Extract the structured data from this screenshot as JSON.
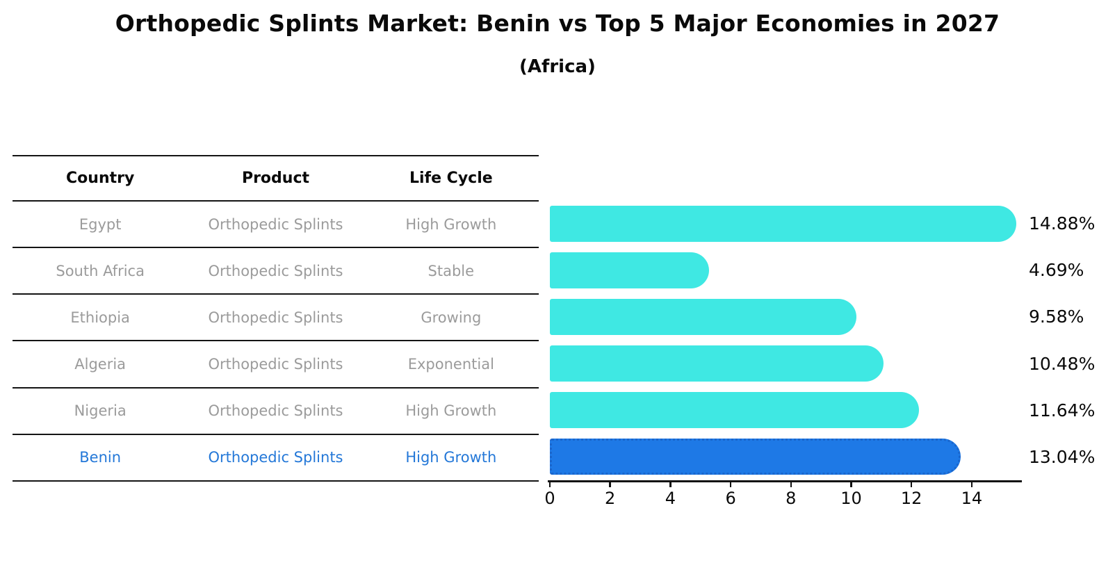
{
  "title": "Orthopedic Splints Market: Benin vs Top 5 Major Economies in 2027",
  "subtitle": "(Africa)",
  "table": {
    "headers": [
      "Country",
      "Product",
      "Life Cycle"
    ],
    "rows": [
      {
        "country": "Egypt",
        "product": "Orthopedic Splints",
        "life_cycle": "High Growth",
        "highlight": false
      },
      {
        "country": "South Africa",
        "product": "Orthopedic Splints",
        "life_cycle": "Stable",
        "highlight": false
      },
      {
        "country": "Ethiopia",
        "product": "Orthopedic Splints",
        "life_cycle": "Growing",
        "highlight": false
      },
      {
        "country": "Algeria",
        "product": "Orthopedic Splints",
        "life_cycle": "Exponential",
        "highlight": false
      },
      {
        "country": "Nigeria",
        "product": "Orthopedic Splints",
        "life_cycle": "High Growth",
        "highlight": false
      },
      {
        "country": "Benin",
        "product": "Orthopedic Splints",
        "life_cycle": "High Growth",
        "highlight": true
      }
    ]
  },
  "chart_data": {
    "type": "bar",
    "orientation": "horizontal",
    "title": "Orthopedic Splints Market: Benin vs Top 5 Major Economies in 2027",
    "subtitle": "(Africa)",
    "categories": [
      "Egypt",
      "South Africa",
      "Ethiopia",
      "Algeria",
      "Nigeria",
      "Benin"
    ],
    "values": [
      14.88,
      4.69,
      9.58,
      10.48,
      11.64,
      13.04
    ],
    "value_labels": [
      "14.88%",
      "4.69%",
      "9.58%",
      "10.48%",
      "11.64%",
      "13.04%"
    ],
    "unit": "%",
    "xticks": [
      0,
      2,
      4,
      6,
      8,
      10,
      12,
      14
    ],
    "xlim": [
      0,
      15.7
    ],
    "highlight_index": 5,
    "grid": false,
    "legend": false
  },
  "colors": {
    "background": "#ffffff",
    "ink": "#0a0a0a",
    "line": "#141414",
    "axis": "#111111",
    "muted_text": "#9b9b9b",
    "bar": "#3fe8e3",
    "highlight_bar": "#1e79e6",
    "highlight_border": "#1a66cc",
    "highlight_text": "#2478d8"
  }
}
